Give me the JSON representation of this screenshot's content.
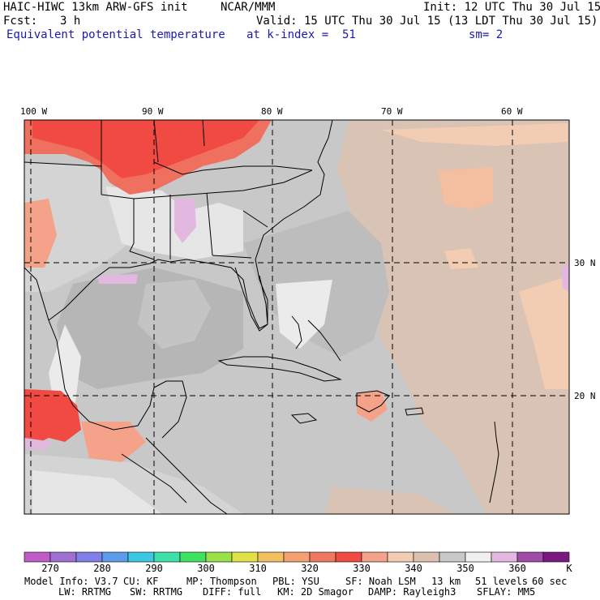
{
  "header": {
    "left_line1": "HAIC-HIWC 13km ARW-GFS init",
    "center_line1": "NCAR/MMM",
    "right_line1": "Init: 12 UTC Thu 30 Jul 15",
    "fcst_label": "Fcst:",
    "fcst_value": "3 h",
    "valid": "Valid: 15 UTC Thu 30 Jul 15 (13 LDT Thu 30 Jul 15)",
    "field": "Equivalent potential temperature",
    "level": "at k-index =  51",
    "smooth": "sm= 2"
  },
  "map": {
    "lon_labels": [
      "100 W",
      "90 W",
      "80 W",
      "70 W",
      "60 W"
    ],
    "lat_labels": [
      "30 N",
      "20 N"
    ],
    "colors": {
      "background": "#c8c8c8",
      "ocean_gray": "#b9b9b9",
      "light": "#ebebeb",
      "hot": "#f04a43",
      "warm": "#f4a38a",
      "tan": "#f2cdb3",
      "lavender": "#e2b8e0"
    }
  },
  "colorbar": {
    "colors": [
      "#c05cc6",
      "#a070d0",
      "#8080e8",
      "#5c9ce8",
      "#3cc8e0",
      "#3ce0a8",
      "#40e060",
      "#9ae048",
      "#e0e048",
      "#f2c060",
      "#f4a070",
      "#f07860",
      "#f04a43",
      "#f4a38a",
      "#f2cdb3",
      "#dcc0b0",
      "#c8c8c8",
      "#f0f0f0",
      "#e2b8e0",
      "#a04ca8",
      "#7a1a80"
    ],
    "labels": [
      "270",
      "280",
      "290",
      "300",
      "310",
      "320",
      "330",
      "340",
      "350",
      "360",
      "K"
    ]
  },
  "footer": {
    "line1": [
      "Model Info: V3.7",
      "CU: KF",
      "MP: Thompson",
      "PBL: YSU",
      "SF: Noah LSM",
      "13 km",
      "51 levels",
      "60 sec"
    ],
    "line2": [
      "LW: RRTMG",
      "SW: RRTMG",
      "DIFF: full",
      "KM: 2D Smagor",
      "DAMP: Rayleigh3",
      "SFLAY: MM5"
    ]
  }
}
